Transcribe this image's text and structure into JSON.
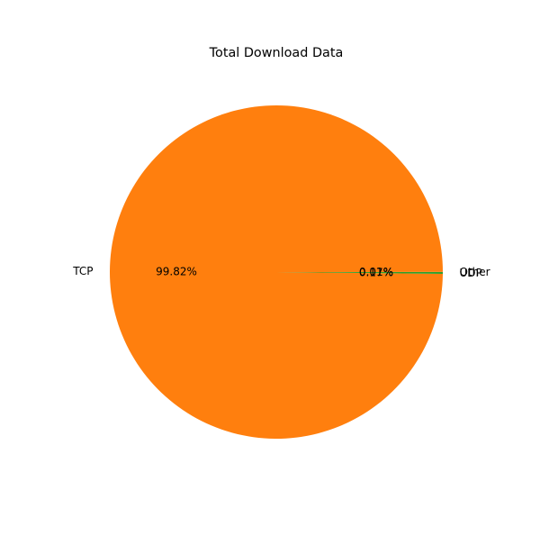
{
  "chart_data": {
    "type": "pie",
    "title": "Total Download Data",
    "slices": [
      {
        "label": "Other",
        "value": 0.01,
        "pct_text": "0.01%",
        "color": "#1f77b4"
      },
      {
        "label": "TCP",
        "value": 99.82,
        "pct_text": "99.82%",
        "color": "#ff7f0e"
      },
      {
        "label": "UDP",
        "value": 0.17,
        "pct_text": "0.17%",
        "color": "#2ca02c"
      }
    ],
    "start_angle_deg": 0,
    "direction": "counterclockwise",
    "legend": "none"
  }
}
